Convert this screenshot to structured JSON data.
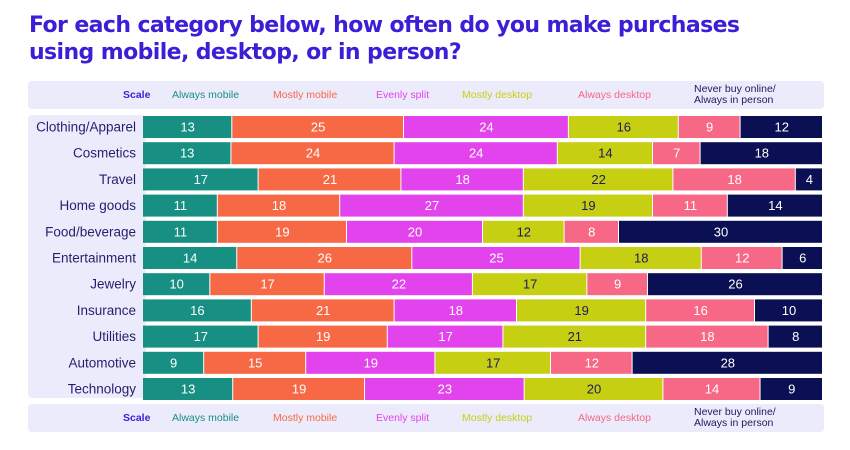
{
  "title": "For each category below, how often do you make purchases using mobile, desktop, or in person?",
  "scale": {
    "label": "Scale",
    "items": [
      {
        "label": "Always mobile",
        "color": "#178f83"
      },
      {
        "label": "Mostly mobile",
        "color": "#f76945"
      },
      {
        "label": "Evenly split",
        "color": "#e243ec"
      },
      {
        "label": "Mostly desktop",
        "color": "#c7cf13"
      },
      {
        "label": "Always desktop",
        "color": "#f76786"
      },
      {
        "label": "Never buy online/ Always in person",
        "color": "#0b0f53"
      }
    ]
  },
  "chart_data": {
    "type": "bar",
    "orientation": "horizontal",
    "stacked": true,
    "categories": [
      "Clothing/Apparel",
      "Cosmetics",
      "Travel",
      "Home goods",
      "Food/beverage",
      "Entertainment",
      "Jewelry",
      "Insurance",
      "Utilities",
      "Automotive",
      "Technology"
    ],
    "series": [
      {
        "name": "Always mobile",
        "values": [
          13,
          13,
          17,
          11,
          11,
          14,
          10,
          16,
          17,
          9,
          13
        ]
      },
      {
        "name": "Mostly mobile",
        "values": [
          25,
          24,
          21,
          18,
          19,
          26,
          17,
          21,
          19,
          15,
          19
        ]
      },
      {
        "name": "Evenly split",
        "values": [
          24,
          24,
          18,
          27,
          20,
          25,
          22,
          18,
          17,
          19,
          23
        ]
      },
      {
        "name": "Mostly desktop",
        "values": [
          16,
          14,
          22,
          19,
          12,
          18,
          17,
          19,
          21,
          17,
          20
        ]
      },
      {
        "name": "Always desktop",
        "values": [
          9,
          7,
          18,
          11,
          8,
          12,
          9,
          16,
          18,
          12,
          14
        ]
      },
      {
        "name": "Never buy online/ Always in person",
        "values": [
          12,
          18,
          4,
          14,
          30,
          6,
          26,
          10,
          8,
          28,
          9
        ]
      }
    ],
    "title": "For each category below, how often do you make purchases using mobile, desktop, or in person?",
    "legend": "top and bottom",
    "grid": false
  }
}
